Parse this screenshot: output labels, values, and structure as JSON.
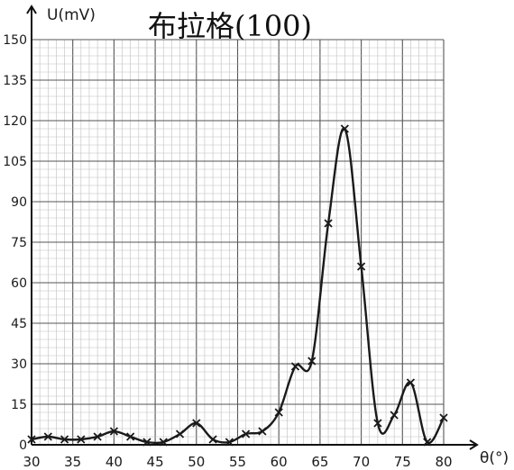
{
  "chart_data": {
    "type": "line",
    "title": "布拉格(100)",
    "xlabel": "θ(°)",
    "ylabel": "U(mV)",
    "xlim": [
      30,
      80
    ],
    "ylim": [
      0,
      150
    ],
    "x_ticks": [
      "30",
      "35",
      "40",
      "45",
      "50",
      "55",
      "60",
      "65",
      "70",
      "75",
      "80"
    ],
    "y_ticks": [
      "0",
      "15",
      "30",
      "45",
      "60",
      "75",
      "90",
      "105",
      "120",
      "135",
      "150"
    ],
    "grid": true,
    "series": [
      {
        "values": [
          [
            30,
            2
          ],
          [
            32,
            3
          ],
          [
            34,
            2
          ],
          [
            36,
            2
          ],
          [
            38,
            3
          ],
          [
            40,
            5
          ],
          [
            42,
            3
          ],
          [
            44,
            1
          ],
          [
            46,
            1
          ],
          [
            48,
            4
          ],
          [
            50,
            8
          ],
          [
            52,
            2
          ],
          [
            54,
            1
          ],
          [
            56,
            4
          ],
          [
            58,
            5
          ],
          [
            60,
            12
          ],
          [
            62,
            29
          ],
          [
            64,
            31
          ],
          [
            66,
            82
          ],
          [
            68,
            117
          ],
          [
            70,
            66
          ],
          [
            72,
            8
          ],
          [
            74,
            11
          ],
          [
            76,
            23
          ],
          [
            78,
            1
          ],
          [
            80,
            10
          ]
        ]
      }
    ],
    "colors": {
      "line": "#1a1a1a",
      "grid_minor": "#bfbfbf",
      "grid_major": "#555555",
      "axis": "#111111"
    }
  }
}
